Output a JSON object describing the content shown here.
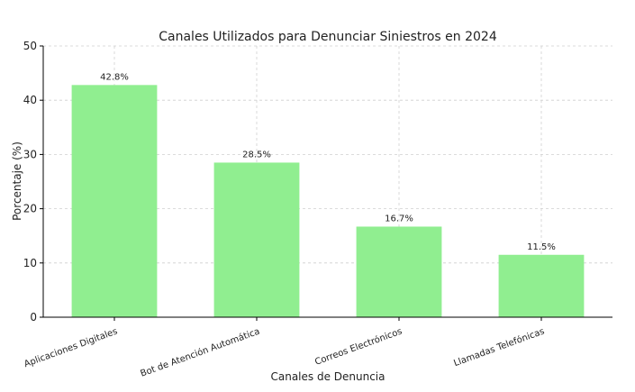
{
  "colors": {
    "bar": "#90ee90",
    "axis": "#000000",
    "grid": "#cfcfcf"
  },
  "chart_data": {
    "type": "bar",
    "title": "Canales Utilizados para Denunciar Siniestros en 2024",
    "xlabel": "Canales de Denuncia",
    "ylabel": "Porcentaje (%)",
    "categories": [
      "Aplicaciones Digitales",
      "Bot de Atención Automática",
      "Correos Electrónicos",
      "Llamadas Telefónicas"
    ],
    "values": [
      42.8,
      28.5,
      16.7,
      11.5
    ],
    "value_labels": [
      "42.8%",
      "28.5%",
      "16.7%",
      "11.5%"
    ],
    "ylim": [
      0,
      50
    ],
    "yticks": [
      0,
      10,
      20,
      30,
      40,
      50
    ],
    "grid": true,
    "category_label_rotation_deg": -20
  }
}
